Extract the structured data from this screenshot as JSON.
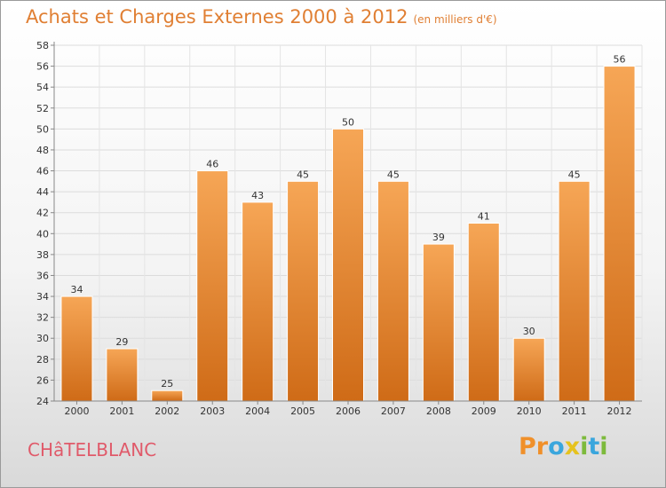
{
  "header": {
    "title": "Achats et Charges Externes 2000 à 2012",
    "subtitle": "(en milliers d'€)"
  },
  "footer": {
    "commune": "CHâTELBLANC",
    "logo_text": "Proxiti"
  },
  "colors": {
    "accent": "#e07f33",
    "bar_top": "#f6a656",
    "bar_bottom": "#cf6b17",
    "commune": "#e05a6a"
  },
  "chart_data": {
    "type": "bar",
    "title": "Achats et Charges Externes 2000 à 2012",
    "subtitle": "(en milliers d'€)",
    "xlabel": "",
    "ylabel": "",
    "categories": [
      "2000",
      "2001",
      "2002",
      "2003",
      "2004",
      "2005",
      "2006",
      "2007",
      "2008",
      "2009",
      "2010",
      "2011",
      "2012"
    ],
    "values": [
      34,
      29,
      25,
      46,
      43,
      45,
      50,
      45,
      39,
      41,
      30,
      45,
      56
    ],
    "ylim": [
      24,
      58
    ],
    "yticks": [
      24,
      26,
      28,
      30,
      32,
      34,
      36,
      38,
      40,
      42,
      44,
      46,
      48,
      50,
      52,
      54,
      56,
      58
    ],
    "grid": true,
    "legend": "none",
    "data_labels": true
  }
}
